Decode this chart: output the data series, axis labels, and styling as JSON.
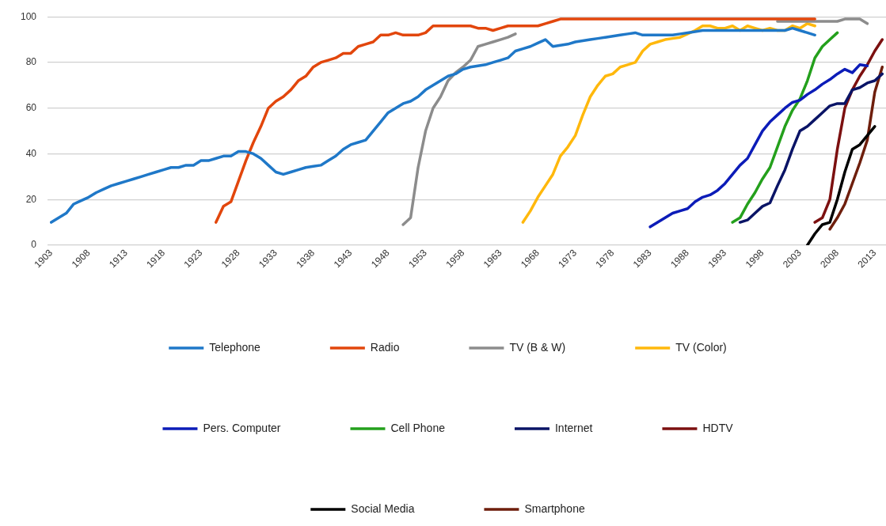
{
  "chart_data": {
    "type": "line",
    "xlim": [
      1902.5,
      2014.5
    ],
    "xticks": [
      1903,
      1908,
      1913,
      1918,
      1923,
      1928,
      1933,
      1938,
      1943,
      1948,
      1953,
      1958,
      1963,
      1968,
      1973,
      1978,
      1983,
      1988,
      1993,
      1998,
      2003,
      2008,
      2013
    ],
    "ylim": [
      0,
      100
    ],
    "yticks": [
      0,
      20,
      40,
      60,
      80,
      100
    ],
    "grid": "y",
    "legend": "bottom",
    "marker": "none",
    "line_style": "solid",
    "series": [
      {
        "name": "Telephone",
        "color": "#1f78c8",
        "x": [
          1903,
          1904,
          1905,
          1906,
          1907,
          1908,
          1909,
          1910,
          1911,
          1912,
          1913,
          1914,
          1915,
          1916,
          1917,
          1918,
          1919,
          1920,
          1921,
          1922,
          1923,
          1924,
          1925,
          1926,
          1927,
          1928,
          1929,
          1930,
          1931,
          1932,
          1933,
          1934,
          1935,
          1936,
          1937,
          1938,
          1939,
          1940,
          1941,
          1942,
          1943,
          1944,
          1945,
          1946,
          1947,
          1948,
          1949,
          1950,
          1951,
          1952,
          1953,
          1954,
          1955,
          1956,
          1957,
          1958,
          1959,
          1960,
          1961,
          1962,
          1963,
          1964,
          1965,
          1966,
          1967,
          1968,
          1969,
          1970,
          1971,
          1972,
          1973,
          1974,
          1975,
          1976,
          1977,
          1978,
          1979,
          1980,
          1981,
          1982,
          1983,
          1984,
          1985,
          1986,
          1987,
          1988,
          1989,
          1990,
          2001,
          2002,
          2003,
          2004,
          2005
        ],
        "values": [
          10,
          12,
          14,
          18,
          19.5,
          21,
          23,
          24.5,
          26,
          27,
          28,
          29,
          30,
          31,
          32,
          33,
          34,
          34,
          35,
          35,
          37,
          37,
          38,
          39,
          39,
          41,
          41,
          40,
          38,
          35,
          32,
          31,
          32,
          33,
          34,
          34.5,
          35,
          37,
          39,
          42,
          44,
          45,
          46,
          50,
          54,
          58,
          60,
          62,
          63,
          65,
          68,
          70,
          72,
          74,
          75,
          77,
          78,
          78.5,
          79,
          80,
          81,
          82,
          85,
          86,
          87,
          88.5,
          90,
          87,
          87.5,
          88,
          89,
          89.5,
          90,
          90.5,
          91,
          91.5,
          92,
          92.5,
          93,
          92,
          92,
          92,
          92,
          92,
          92.5,
          93,
          93.5,
          94,
          94,
          95,
          94,
          93,
          92
        ]
      },
      {
        "name": "Radio",
        "color": "#e2460c",
        "x": [
          1925,
          1926,
          1927,
          1928,
          1929,
          1930,
          1931,
          1932,
          1933,
          1934,
          1935,
          1936,
          1937,
          1938,
          1939,
          1940,
          1941,
          1942,
          1943,
          1944,
          1945,
          1946,
          1947,
          1948,
          1949,
          1950,
          1951,
          1952,
          1953,
          1954,
          1955,
          1956,
          1957,
          1958,
          1959,
          1960,
          1961,
          1962,
          1963,
          1964,
          1965,
          1966,
          1967,
          1968,
          1969,
          1970,
          1971,
          2005
        ],
        "values": [
          10,
          17,
          19,
          28,
          37,
          45,
          52,
          60,
          63,
          65,
          68,
          72,
          74,
          78,
          80,
          81,
          82,
          84,
          84,
          87,
          88,
          89,
          92,
          92,
          93,
          92,
          92,
          92,
          93,
          96,
          96,
          96,
          96,
          96,
          96,
          95,
          95,
          94,
          95,
          96,
          96,
          96,
          96,
          96,
          97,
          98,
          99,
          99
        ]
      },
      {
        "name": "TV (B & W)",
        "color": "#8c8c8c",
        "x": [
          1950,
          1951,
          1952,
          1953,
          1954,
          1955,
          1956,
          1957,
          1958,
          1959,
          1960,
          1961,
          1962,
          1963,
          1964,
          1965,
          1980,
          2000,
          2008,
          2009,
          2011,
          2012
        ],
        "values": [
          9,
          12,
          34,
          50,
          60,
          65,
          72,
          75.5,
          78,
          81,
          87,
          88,
          89,
          90,
          91,
          92.5,
          null,
          98,
          98,
          99,
          99,
          97
        ]
      },
      {
        "name": "TV (Color)",
        "color": "#ffb80c",
        "x": [
          1966,
          1967,
          1968,
          1969,
          1970,
          1971,
          1972,
          1973,
          1974,
          1975,
          1976,
          1977,
          1978,
          1979,
          1980,
          1981,
          1982,
          1983,
          1984,
          1985,
          1986,
          1987,
          1988,
          1989,
          1990,
          1991,
          1992,
          1993,
          1994,
          1995,
          1996,
          1997,
          1998,
          1999,
          2000,
          2001,
          2002,
          2003,
          2004,
          2005
        ],
        "values": [
          10,
          15,
          21,
          26,
          31,
          39,
          43,
          48,
          57,
          65,
          70,
          74,
          75,
          78,
          79,
          80,
          85,
          88,
          89,
          90,
          90.5,
          91,
          92.5,
          94,
          96,
          96,
          95,
          95,
          96,
          94,
          96,
          95,
          94,
          95,
          94,
          94,
          96,
          95,
          97,
          96
        ]
      },
      {
        "name": "Pers. Computer",
        "color": "#0c1cb8",
        "x": [
          1983,
          1984,
          1985,
          1986,
          1987,
          1988,
          1989,
          1990,
          1991,
          1992,
          1993,
          1994,
          1995,
          1996,
          1997,
          1998,
          1999,
          2000,
          2001,
          2002,
          2003,
          2004,
          2005,
          2006,
          2007,
          2008,
          2009,
          2010,
          2011,
          2012
        ],
        "values": [
          8,
          10,
          12,
          14,
          15,
          16,
          19,
          21,
          22,
          24,
          27,
          31,
          35,
          38,
          44,
          50,
          54,
          57,
          60,
          62.5,
          63.5,
          66,
          68,
          70.5,
          72.5,
          75,
          77,
          75.5,
          79,
          78.5
        ]
      },
      {
        "name": "Cell Phone",
        "color": "#24a01c",
        "x": [
          1994,
          1995,
          1996,
          1997,
          1998,
          1999,
          2000,
          2001,
          2002,
          2003,
          2004,
          2005,
          2006,
          2007,
          2008
        ],
        "values": [
          10,
          12,
          18,
          23,
          29,
          34,
          43,
          52,
          59,
          64,
          72,
          82,
          87,
          90,
          93
        ]
      },
      {
        "name": "Internet",
        "color": "#0a1466",
        "x": [
          1995,
          1996,
          1997,
          1998,
          1999,
          2000,
          2001,
          2002,
          2003,
          2004,
          2005,
          2006,
          2007,
          2008,
          2009,
          2010,
          2011,
          2012,
          2013,
          2014
        ],
        "values": [
          10,
          11,
          14,
          17,
          18.5,
          26,
          33,
          42,
          50,
          52,
          55,
          58,
          61,
          62,
          62,
          68,
          69,
          71,
          72,
          75
        ]
      },
      {
        "name": "HDTV",
        "color": "#7c1010",
        "x": [
          2005,
          2006,
          2007,
          2008,
          2009,
          2010,
          2011,
          2012,
          2013,
          2014
        ],
        "values": [
          10,
          12,
          20,
          42,
          60,
          68,
          74,
          79,
          85,
          90
        ]
      },
      {
        "name": "Social Media",
        "color": "#000000",
        "x": [
          2004,
          2005,
          2006,
          2007,
          2008,
          2009,
          2010,
          2011,
          2012,
          2013
        ],
        "values": [
          0,
          5,
          9,
          10,
          20,
          32,
          42,
          44,
          48,
          52
        ]
      },
      {
        "name": "Smartphone",
        "color": "#6e1e0c",
        "x": [
          2007,
          2008,
          2009,
          2010,
          2011,
          2012,
          2013,
          2014
        ],
        "values": [
          7,
          12,
          18,
          27,
          36,
          46,
          67,
          78
        ]
      }
    ]
  }
}
